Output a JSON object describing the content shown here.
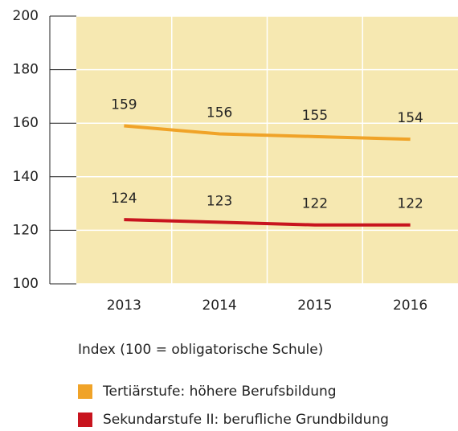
{
  "chart_data": {
    "type": "line",
    "categories": [
      "2013",
      "2014",
      "2015",
      "2016"
    ],
    "series": [
      {
        "name": "Tertiärstufe: höhere Berufsbildung",
        "color": "#f0a328",
        "values": [
          159,
          156,
          155,
          154
        ]
      },
      {
        "name": "Sekundarstufe II: berufliche Grundbildung",
        "color": "#c8141e",
        "values": [
          124,
          123,
          122,
          122
        ]
      }
    ],
    "ylim": [
      100,
      200
    ],
    "yticks": [
      100,
      120,
      140,
      160,
      180,
      200
    ],
    "note": "Index (100 = obligatorische Schule)",
    "grid": true,
    "plot_background": "#f6e8b1"
  }
}
